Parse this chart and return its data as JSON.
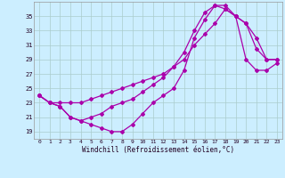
{
  "xlabel": "Windchill (Refroidissement éolien,°C)",
  "xlim": [
    -0.5,
    23.5
  ],
  "ylim": [
    18.0,
    37.0
  ],
  "xticks": [
    0,
    1,
    2,
    3,
    4,
    5,
    6,
    7,
    8,
    9,
    10,
    11,
    12,
    13,
    14,
    15,
    16,
    17,
    18,
    19,
    20,
    21,
    22,
    23
  ],
  "yticks": [
    19,
    21,
    23,
    25,
    27,
    29,
    31,
    33,
    35
  ],
  "background_color": "#cceeff",
  "line_color": "#aa00aa",
  "grid_color": "#aacccc",
  "line1_x": [
    0,
    1,
    2,
    3,
    4,
    5,
    6,
    7,
    8,
    9,
    10,
    11,
    12,
    13,
    14,
    15,
    16,
    17,
    18,
    19,
    20,
    21,
    22,
    23
  ],
  "line1_y": [
    24.0,
    23.0,
    23.0,
    23.0,
    23.0,
    23.5,
    24.0,
    24.5,
    25.0,
    25.5,
    26.0,
    26.5,
    27.0,
    28.0,
    29.0,
    31.0,
    32.5,
    34.0,
    36.0,
    35.0,
    34.0,
    30.5,
    29.0,
    29.0
  ],
  "line2_x": [
    0,
    1,
    2,
    3,
    4,
    5,
    6,
    7,
    8,
    9,
    10,
    11,
    12,
    13,
    14,
    15,
    16,
    17,
    18,
    19,
    20,
    21,
    22,
    23
  ],
  "line2_y": [
    24.0,
    23.0,
    22.5,
    21.0,
    20.5,
    20.0,
    19.5,
    19.0,
    19.0,
    20.0,
    21.5,
    23.0,
    24.0,
    25.0,
    27.5,
    32.0,
    34.5,
    36.5,
    36.0,
    35.0,
    29.0,
    27.5,
    27.5,
    28.5
  ],
  "line3_x": [
    0,
    1,
    2,
    3,
    4,
    5,
    6,
    7,
    8,
    9,
    10,
    11,
    12,
    13,
    14,
    15,
    16,
    17,
    18,
    19,
    20,
    21,
    22,
    23
  ],
  "line3_y": [
    24.0,
    23.0,
    22.5,
    21.0,
    20.5,
    21.0,
    21.5,
    22.5,
    23.0,
    23.5,
    24.5,
    25.5,
    26.5,
    28.0,
    30.0,
    33.0,
    35.5,
    36.5,
    36.5,
    35.0,
    34.0,
    32.0,
    29.0,
    29.0
  ]
}
